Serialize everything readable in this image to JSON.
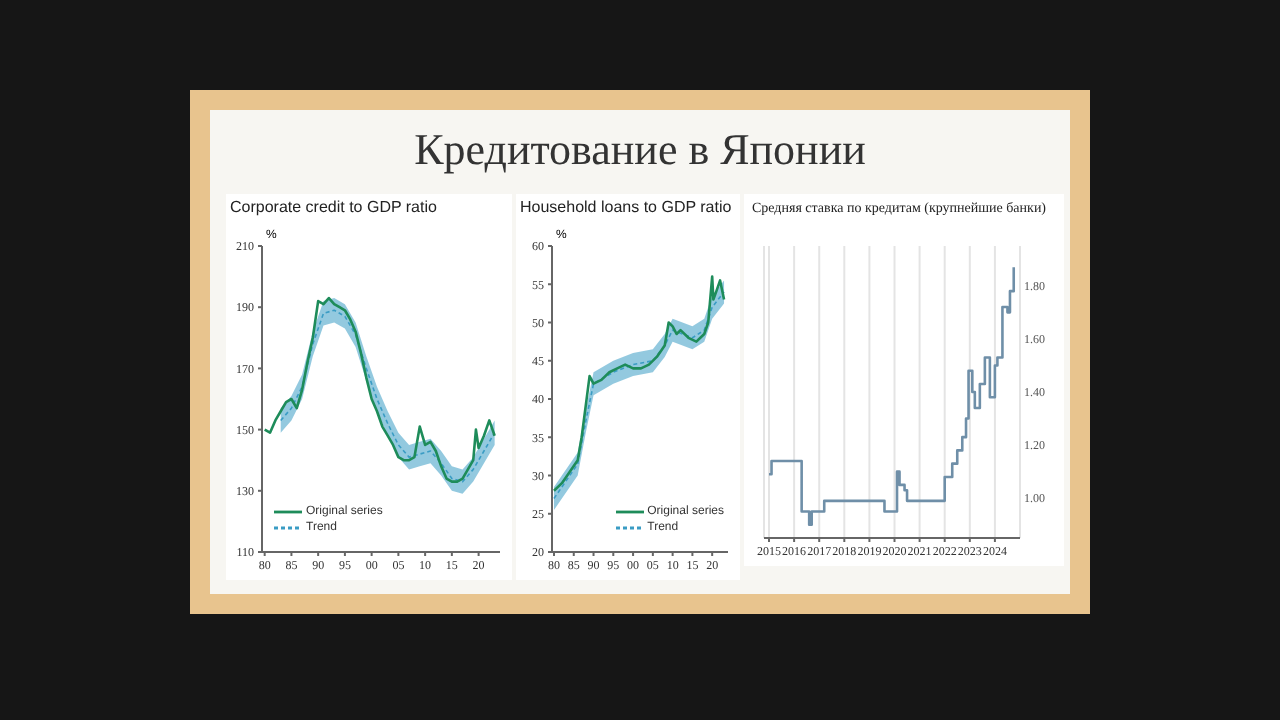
{
  "chart_data": [
    {
      "type": "other",
      "title": "Кредитование в Японии"
    },
    {
      "type": "line",
      "title": "Corporate credit to GDP ratio",
      "ylabel": "%",
      "xlim": [
        1979.5,
        2024
      ],
      "ylim": [
        110,
        210
      ],
      "yticks": [
        110,
        130,
        150,
        170,
        190,
        210
      ],
      "xticks": [
        {
          "value": 1980,
          "label": "80"
        },
        {
          "value": 1985,
          "label": "85"
        },
        {
          "value": 1990,
          "label": "90"
        },
        {
          "value": 1995,
          "label": "95"
        },
        {
          "value": 2000,
          "label": "00"
        },
        {
          "value": 2005,
          "label": "05"
        },
        {
          "value": 2010,
          "label": "10"
        },
        {
          "value": 2015,
          "label": "15"
        },
        {
          "value": 2020,
          "label": "20"
        }
      ],
      "legend": "bottom left",
      "grid": false,
      "series": [
        {
          "name": "Trend",
          "color": "#3a9cc4",
          "line_style": "dashed",
          "x": [
            1983,
            1985,
            1987,
            1989,
            1991,
            1993,
            1995,
            1997,
            1999,
            2001,
            2003,
            2005,
            2007,
            2009,
            2011,
            2013,
            2015,
            2017,
            2019,
            2021,
            2023
          ],
          "values": [
            153,
            157,
            164,
            178,
            188,
            189,
            187,
            181,
            170,
            160,
            152,
            145,
            141,
            142,
            143,
            139,
            134,
            133,
            137,
            143,
            149
          ],
          "lower": [
            149,
            153,
            160,
            174,
            184,
            185,
            183,
            177,
            166,
            156,
            148,
            141,
            137,
            138,
            139,
            135,
            130,
            129,
            133,
            139,
            145
          ],
          "upper": [
            157,
            161,
            168,
            182,
            192,
            193,
            191,
            185,
            174,
            164,
            156,
            149,
            145,
            146,
            147,
            143,
            138,
            137,
            141,
            147,
            153
          ]
        },
        {
          "name": "Original series",
          "color": "#1e8c5a",
          "line_style": "solid",
          "x": [
            1980,
            1981,
            1982,
            1983,
            1984,
            1985,
            1986,
            1987,
            1988,
            1989,
            1990,
            1991,
            1992,
            1993,
            1994,
            1995,
            1996,
            1997,
            1998,
            1999,
            2000,
            2001,
            2002,
            2003,
            2004,
            2005,
            2006,
            2007,
            2008,
            2009,
            2010,
            2011,
            2012,
            2013,
            2014,
            2015,
            2016,
            2017,
            2018,
            2019,
            2019.5,
            2020,
            2021,
            2022,
            2023
          ],
          "values": [
            150,
            149,
            153,
            156,
            159,
            160,
            157,
            163,
            172,
            180,
            192,
            191,
            193,
            191,
            190,
            189,
            186,
            182,
            175,
            167,
            160,
            156,
            151,
            148,
            145,
            141,
            140,
            140,
            141,
            151,
            145,
            146,
            143,
            138,
            134,
            133,
            133,
            134,
            137,
            140,
            150,
            144,
            148,
            153,
            148
          ]
        }
      ]
    },
    {
      "type": "line",
      "title": "Household loans to GDP ratio",
      "ylabel": "%",
      "xlim": [
        1979.5,
        2024
      ],
      "ylim": [
        20,
        60
      ],
      "yticks": [
        20,
        25,
        30,
        35,
        40,
        45,
        50,
        55,
        60
      ],
      "xticks": [
        {
          "value": 1980,
          "label": "80"
        },
        {
          "value": 1985,
          "label": "85"
        },
        {
          "value": 1990,
          "label": "90"
        },
        {
          "value": 1995,
          "label": "95"
        },
        {
          "value": 2000,
          "label": "00"
        },
        {
          "value": 2005,
          "label": "05"
        },
        {
          "value": 2010,
          "label": "10"
        },
        {
          "value": 2015,
          "label": "15"
        },
        {
          "value": 2020,
          "label": "20"
        }
      ],
      "legend": "bottom right",
      "grid": false,
      "series": [
        {
          "name": "Trend",
          "color": "#3a9cc4",
          "line_style": "dashed",
          "x": [
            1980,
            1984,
            1986,
            1988,
            1990,
            1995,
            2000,
            2005,
            2008,
            2010,
            2015,
            2018,
            2020,
            2023
          ],
          "values": [
            27,
            30,
            31.5,
            37,
            42,
            43.5,
            44.5,
            45,
            47,
            49,
            48,
            49,
            52,
            54
          ],
          "lower": [
            25.5,
            28.5,
            30,
            35.5,
            40.5,
            42,
            43,
            43.5,
            45.5,
            47.5,
            46.5,
            47.5,
            50.5,
            52.5
          ],
          "upper": [
            28.5,
            31.5,
            33,
            38.5,
            43.5,
            45,
            46,
            46.5,
            48.5,
            50.5,
            49.5,
            50.5,
            53.5,
            55.5
          ]
        },
        {
          "name": "Original series",
          "color": "#1e8c5a",
          "line_style": "solid",
          "x": [
            1980,
            1982,
            1984,
            1986,
            1987,
            1988,
            1989,
            1990,
            1992,
            1994,
            1996,
            1998,
            2000,
            2002,
            2004,
            2006,
            2008,
            2009,
            2010,
            2011,
            2012,
            2014,
            2016,
            2018,
            2019,
            2020,
            2020.3,
            2021,
            2022,
            2023
          ],
          "values": [
            28,
            29,
            30.5,
            32,
            35,
            39,
            43,
            42,
            42.5,
            43.5,
            44,
            44.5,
            44,
            44,
            44.5,
            45.5,
            47,
            50,
            49.5,
            48.5,
            49,
            48,
            47.5,
            48.5,
            50,
            56,
            53,
            54,
            55.5,
            53
          ]
        }
      ]
    },
    {
      "type": "step",
      "title": "Средняя ставка по кредитам (крупнейшие банки)",
      "xlim": [
        2014.8,
        2025
      ],
      "xticks": [
        2015,
        2016,
        2017,
        2018,
        2019,
        2020,
        2021,
        2022,
        2023,
        2024
      ],
      "y2lim": [
        0.85,
        1.95
      ],
      "y2ticks": [
        {
          "value": 1,
          "label": "1.00"
        },
        {
          "value": 1.2,
          "label": "1.20"
        },
        {
          "value": 1.4,
          "label": "1.40"
        },
        {
          "value": 1.6,
          "label": "1.60"
        },
        {
          "value": 1.8,
          "label": "1.80"
        }
      ],
      "grid": "x",
      "series": [
        {
          "color": "#6f8fa8",
          "axis": "y2",
          "x": [
            2015,
            2015.1,
            2016.3,
            2016.6,
            2016.7,
            2017.2,
            2019.6,
            2020.1,
            2020.2,
            2020.4,
            2020.5,
            2022,
            2022.3,
            2022.5,
            2022.7,
            2022.85,
            2022.95,
            2023.1,
            2023.2,
            2023.4,
            2023.6,
            2023.8,
            2024,
            2024.1,
            2024.3,
            2024.5,
            2024.6,
            2024.75
          ],
          "values": [
            1.09,
            1.14,
            0.95,
            0.9,
            0.95,
            0.99,
            0.95,
            1.1,
            1.05,
            1.03,
            0.99,
            1.08,
            1.13,
            1.18,
            1.23,
            1.3,
            1.48,
            1.4,
            1.34,
            1.43,
            1.53,
            1.38,
            1.5,
            1.53,
            1.72,
            1.7,
            1.78,
            1.87
          ]
        }
      ]
    }
  ]
}
